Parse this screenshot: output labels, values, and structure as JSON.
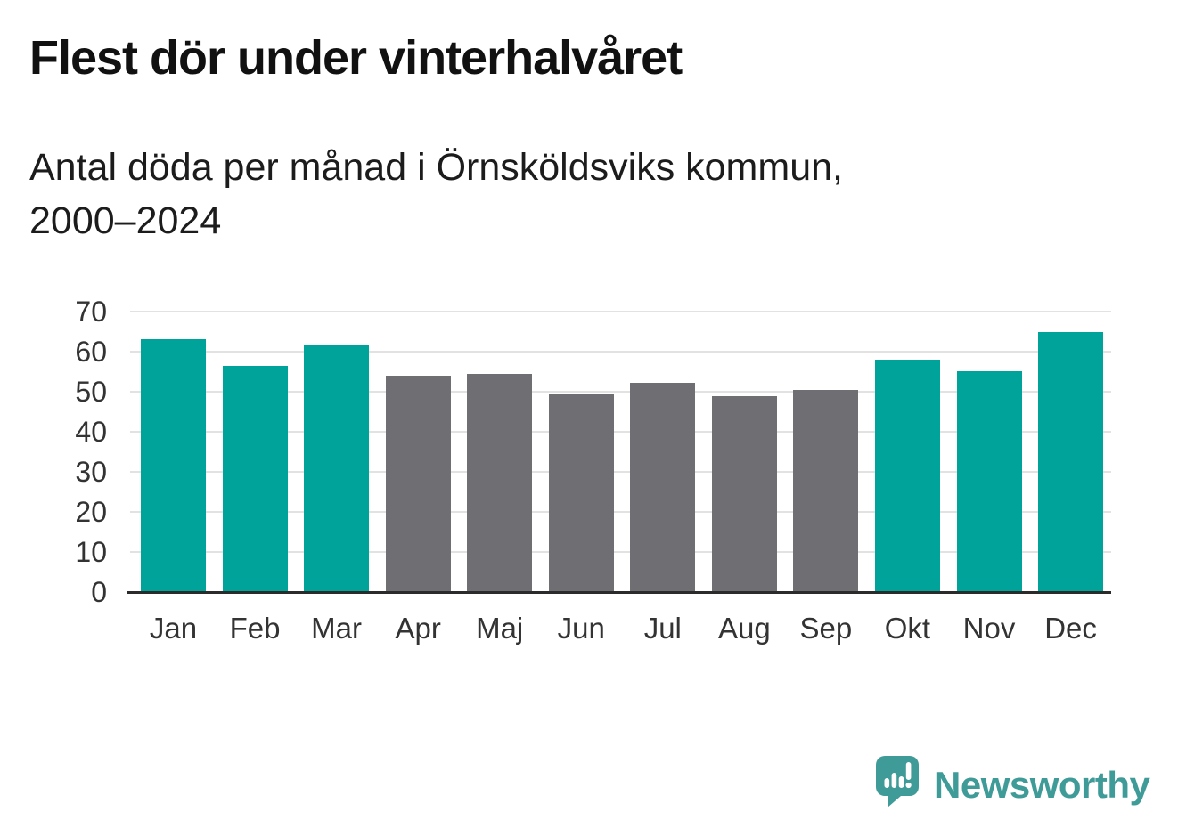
{
  "header": {
    "title": "Flest dör under vinterhalvåret",
    "subtitle": "Antal döda per månad i Örnsköldsviks kommun,\n2000–2024"
  },
  "chart_data": {
    "type": "bar",
    "title": "Flest dör under vinterhalvåret",
    "subtitle": "Antal döda per månad i Örnsköldsviks kommun, 2000–2024",
    "categories": [
      "Jan",
      "Feb",
      "Mar",
      "Apr",
      "Maj",
      "Jun",
      "Jul",
      "Aug",
      "Sep",
      "Okt",
      "Nov",
      "Dec"
    ],
    "values": [
      63.2,
      56.5,
      61.7,
      53.9,
      54.5,
      49.6,
      52.2,
      48.8,
      50.5,
      57.9,
      55.2,
      65
    ],
    "highlighted": [
      true,
      true,
      true,
      false,
      false,
      false,
      false,
      false,
      false,
      true,
      true,
      true
    ],
    "highlight_color": "#00a399",
    "base_color": "#6e6e73",
    "xlabel": "",
    "ylabel": "",
    "ylim": [
      0,
      70
    ],
    "yticks": [
      0,
      10,
      20,
      30,
      40,
      50,
      60,
      70
    ],
    "grid": "horizontal",
    "legend": "none"
  },
  "footer": {
    "brand": "Newsworthy",
    "brand_color": "#3f9b97",
    "logo_icon": "newsworthy-speech-bubble-chart-icon"
  },
  "colors": {
    "axis_line": "#2b2b2b",
    "gridline": "#e2e2e2",
    "tick_text": "#333333"
  }
}
